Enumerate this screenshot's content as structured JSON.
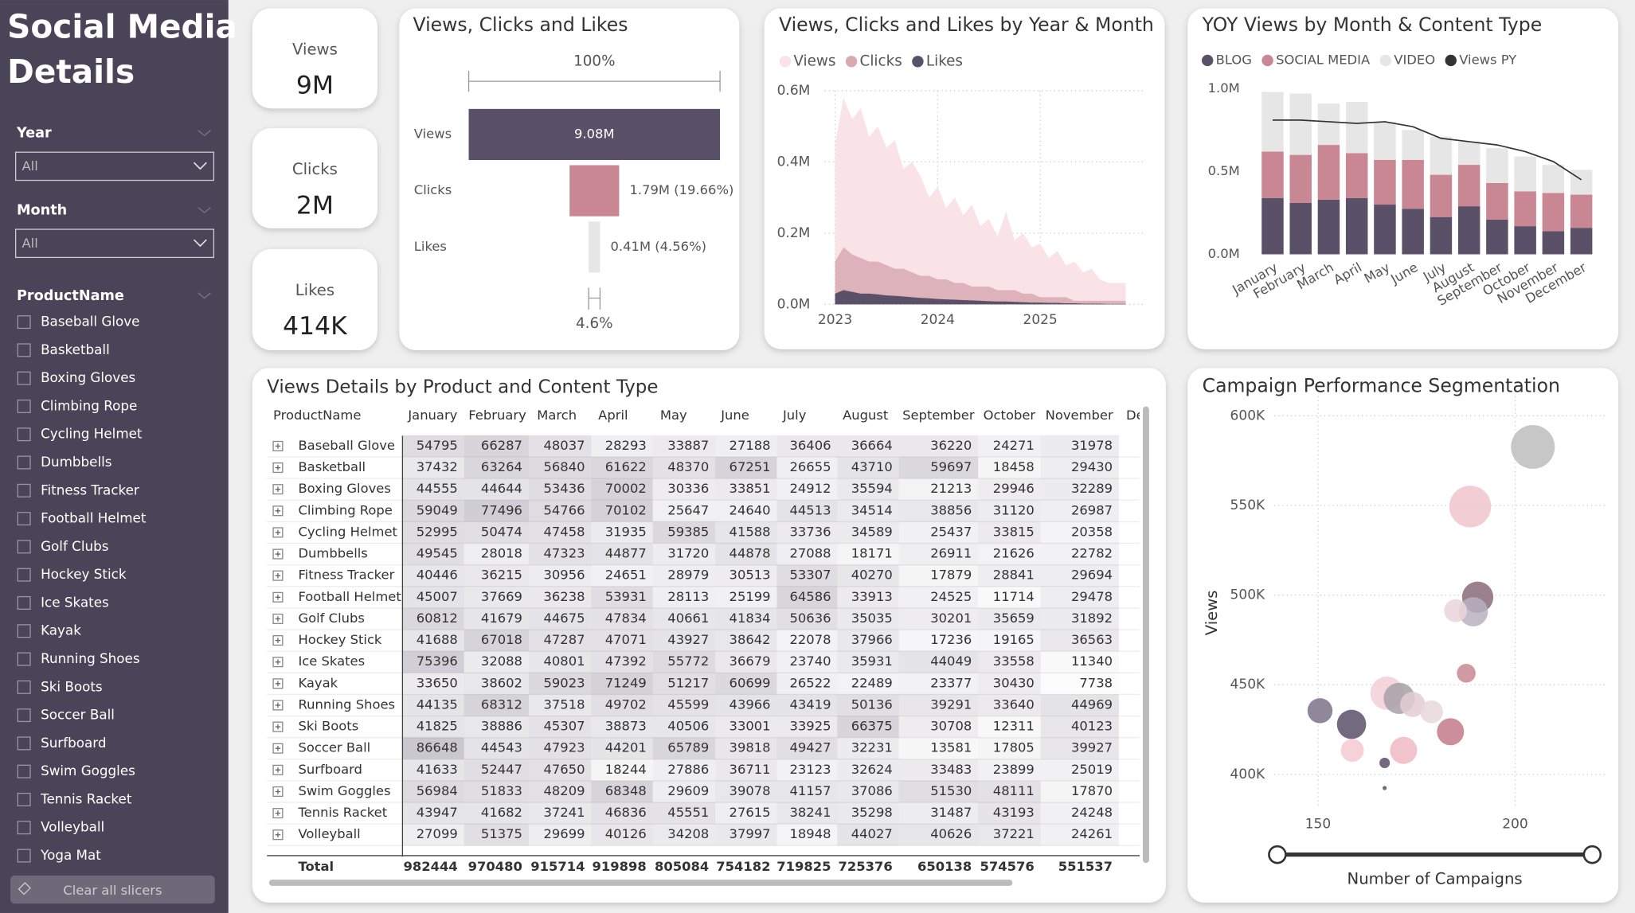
{
  "sidebar": {
    "title_lines": [
      "Social Media",
      "Details"
    ],
    "slicers": [
      {
        "label": "Year",
        "value": "All"
      },
      {
        "label": "Month",
        "value": "All"
      }
    ],
    "list_title": "ProductName",
    "items": [
      "Baseball Glove",
      "Basketball",
      "Boxing Gloves",
      "Climbing Rope",
      "Cycling Helmet",
      "Dumbbells",
      "Fitness Tracker",
      "Football Helmet",
      "Golf Clubs",
      "Hockey Stick",
      "Ice Skates",
      "Kayak",
      "Running Shoes",
      "Ski Boots",
      "Soccer Ball",
      "Surfboard",
      "Swim Goggles",
      "Tennis Racket",
      "Volleyball",
      "Yoga Mat"
    ],
    "clear_button": "Clear all slicers"
  },
  "cards": [
    {
      "label": "Views",
      "value": "9M"
    },
    {
      "label": "Clicks",
      "value": "2M"
    },
    {
      "label": "Likes",
      "value": "414K"
    }
  ],
  "chart_data": [
    {
      "type": "funnel",
      "title": "Views, Clicks and Likes",
      "categories": [
        "Views",
        "Clicks",
        "Likes"
      ],
      "values": [
        9.08,
        1.79,
        0.41
      ],
      "value_labels": [
        "9.08M",
        "1.79M (19.66%)",
        "0.41M (4.56%)"
      ],
      "colors": [
        "#5a5068",
        "#c98793",
        "#e6e6e6"
      ],
      "top_label": "100%",
      "bottom_label": "4.6%"
    },
    {
      "type": "area",
      "title": "Views, Clicks and Likes by Year & Month",
      "legend": "top-left",
      "grid": true,
      "x": [
        2023,
        2023.083,
        2023.167,
        2023.25,
        2023.333,
        2023.417,
        2023.5,
        2023.583,
        2023.667,
        2023.75,
        2023.833,
        2023.917,
        2024,
        2024.083,
        2024.167,
        2024.25,
        2024.333,
        2024.417,
        2024.5,
        2024.583,
        2024.667,
        2024.75,
        2024.833,
        2024.917,
        2025,
        2025.083,
        2025.167,
        2025.25,
        2025.333,
        2025.417,
        2025.5,
        2025.583,
        2025.667,
        2025.75,
        2025.833
      ],
      "series": [
        {
          "name": "Views",
          "color": "#f9e3e6",
          "values": [
            0.45,
            0.58,
            0.52,
            0.55,
            0.47,
            0.5,
            0.44,
            0.46,
            0.38,
            0.4,
            0.36,
            0.3,
            0.33,
            0.27,
            0.3,
            0.25,
            0.28,
            0.22,
            0.24,
            0.19,
            0.26,
            0.18,
            0.2,
            0.16,
            0.17,
            0.13,
            0.15,
            0.11,
            0.12,
            0.09,
            0.1,
            0.07,
            0.06,
            0.06,
            0.06
          ]
        },
        {
          "name": "Clicks",
          "color": "#d9a9b2",
          "values": [
            0.12,
            0.16,
            0.14,
            0.13,
            0.12,
            0.12,
            0.11,
            0.1,
            0.1,
            0.09,
            0.08,
            0.08,
            0.07,
            0.07,
            0.06,
            0.06,
            0.05,
            0.05,
            0.05,
            0.04,
            0.04,
            0.04,
            0.03,
            0.03,
            0.02,
            0.02,
            0.02,
            0.02,
            0.01,
            0.01,
            0.01,
            0.01,
            0.01,
            0.01,
            0.01
          ]
        },
        {
          "name": "Likes",
          "color": "#5a5068",
          "values": [
            0.03,
            0.04,
            0.035,
            0.03,
            0.03,
            0.028,
            0.025,
            0.024,
            0.022,
            0.02,
            0.018,
            0.017,
            0.015,
            0.014,
            0.013,
            0.012,
            0.011,
            0.01,
            0.009,
            0.008,
            0.008,
            0.007,
            0.006,
            0.005,
            0.005,
            0.004,
            0.004,
            0.003,
            0.003,
            0.002,
            0.002,
            0.002,
            0.001,
            0.001,
            0.001
          ]
        }
      ],
      "xlim": [
        2022.9,
        2026
      ],
      "xticks": [
        2023,
        2024,
        2025
      ],
      "ylim": [
        0,
        0.6
      ],
      "yticks": [
        {
          "value": 0,
          "label": "0.0M"
        },
        {
          "value": 0.2,
          "label": "0.2M"
        },
        {
          "value": 0.4,
          "label": "0.4M"
        },
        {
          "value": 0.6,
          "label": "0.6M"
        }
      ]
    },
    {
      "type": "stacked-bar",
      "title": "YOY Views by Month & Content Type",
      "legend": "top-left",
      "categories": [
        "January",
        "February",
        "March",
        "April",
        "May",
        "June",
        "July",
        "August",
        "September",
        "October",
        "November",
        "December"
      ],
      "series": [
        {
          "name": "BLOG",
          "color": "#5a5068",
          "values": [
            0.34,
            0.31,
            0.33,
            0.34,
            0.3,
            0.275,
            0.225,
            0.29,
            0.21,
            0.17,
            0.14,
            0.16
          ]
        },
        {
          "name": "SOCIAL MEDIA",
          "color": "#c98793",
          "values": [
            0.28,
            0.29,
            0.33,
            0.27,
            0.27,
            0.295,
            0.255,
            0.25,
            0.22,
            0.21,
            0.23,
            0.2
          ]
        },
        {
          "name": "VIDEO",
          "color": "#e6e6e6",
          "values": [
            0.36,
            0.37,
            0.25,
            0.31,
            0.23,
            0.18,
            0.23,
            0.14,
            0.21,
            0.21,
            0.17,
            0.15
          ]
        },
        {
          "name": "Views PY",
          "type": "line",
          "color": "#333333",
          "values": [
            0.81,
            0.81,
            0.8,
            0.79,
            0.8,
            0.77,
            0.7,
            0.68,
            0.66,
            0.62,
            0.56,
            0.45
          ]
        }
      ],
      "ylim": [
        0,
        1
      ],
      "yticks": [
        {
          "value": 0,
          "label": "0.0M"
        },
        {
          "value": 0.5,
          "label": "0.5M"
        },
        {
          "value": 1,
          "label": "1.0M"
        }
      ]
    },
    {
      "type": "scatter",
      "title": "Campaign Performance Segmentation",
      "x_label": "Number of Campaigns",
      "y_label": "Views",
      "grid": true,
      "x": [
        204.5,
        188.6,
        190.5,
        189.4,
        184.9,
        187.6,
        150.5,
        158.5,
        167.5,
        170.6,
        174,
        178.8,
        183.6,
        171.7,
        158.7,
        166.9,
        166.9
      ],
      "y": [
        582600,
        549400,
        498800,
        490700,
        491300,
        456400,
        435500,
        427900,
        445300,
        442400,
        439000,
        434900,
        423800,
        413400,
        413400,
        406400,
        392400
      ],
      "sizes": [
        21,
        20,
        15,
        14,
        11,
        9,
        12,
        14,
        16,
        15,
        12,
        11,
        13,
        13,
        11,
        5,
        2
      ],
      "colors": [
        "#bdbdbd",
        "#f0c4cb",
        "#8a6b78",
        "#b8b0c0",
        "#ead5da",
        "#c98793",
        "#7d7288",
        "#5a5068",
        "#f2d0d6",
        "#a8a0a8",
        "#e3cdd4",
        "#e8d8dc",
        "#c37a88",
        "#f0b8c3",
        "#f5c9d0",
        "#5a5068",
        "#5a5068"
      ],
      "xlim": [
        125,
        223
      ],
      "xticks": [
        150,
        200
      ],
      "ylim": [
        381000,
        611000
      ],
      "yticks": [
        {
          "value": 400000,
          "label": "400K"
        },
        {
          "value": 450000,
          "label": "450K"
        },
        {
          "value": 500000,
          "label": "500K"
        },
        {
          "value": 550000,
          "label": "550K"
        },
        {
          "value": 600000,
          "label": "600K"
        }
      ]
    }
  ],
  "table": {
    "title": "Views Details by Product and Content Type",
    "columns": [
      "ProductName",
      "January",
      "February",
      "March",
      "April",
      "May",
      "June",
      "July",
      "August",
      "September",
      "October",
      "November",
      "De"
    ],
    "rows": [
      [
        "Baseball Glove",
        54795,
        66287,
        48037,
        28293,
        33887,
        27188,
        36406,
        36664,
        36220,
        24271,
        31978
      ],
      [
        "Basketball",
        37432,
        63264,
        56840,
        61622,
        48370,
        67251,
        26655,
        43710,
        59697,
        18458,
        29430
      ],
      [
        "Boxing Gloves",
        44555,
        44644,
        53436,
        70002,
        30336,
        33851,
        24912,
        35594,
        21213,
        29946,
        32289
      ],
      [
        "Climbing Rope",
        59049,
        77496,
        54766,
        70102,
        25647,
        24640,
        44513,
        34514,
        38856,
        31120,
        26987
      ],
      [
        "Cycling Helmet",
        52995,
        50474,
        47458,
        31935,
        59385,
        41588,
        33736,
        34589,
        25437,
        33815,
        20358
      ],
      [
        "Dumbbells",
        49545,
        28018,
        47323,
        44877,
        31720,
        44878,
        27088,
        18171,
        26911,
        21626,
        22782
      ],
      [
        "Fitness Tracker",
        40446,
        36215,
        30956,
        24651,
        28979,
        30513,
        53307,
        40270,
        17879,
        28841,
        29694
      ],
      [
        "Football Helmet",
        45007,
        37669,
        36238,
        53931,
        28113,
        25199,
        64586,
        33913,
        24525,
        11714,
        29478
      ],
      [
        "Golf Clubs",
        60812,
        41679,
        44675,
        47834,
        40661,
        41834,
        50636,
        35035,
        30201,
        35659,
        31892
      ],
      [
        "Hockey Stick",
        41688,
        67018,
        47287,
        47071,
        43927,
        38642,
        22078,
        37966,
        17236,
        19165,
        36563
      ],
      [
        "Ice Skates",
        75396,
        32088,
        40801,
        47392,
        55772,
        36679,
        23740,
        35931,
        44049,
        33558,
        11340
      ],
      [
        "Kayak",
        33650,
        38602,
        59023,
        71249,
        51217,
        60699,
        26522,
        22489,
        23377,
        30430,
        7738
      ],
      [
        "Running Shoes",
        44135,
        68312,
        37518,
        49702,
        45599,
        43966,
        43419,
        50136,
        39291,
        33640,
        44969
      ],
      [
        "Ski Boots",
        41825,
        38886,
        45307,
        38873,
        40506,
        33001,
        33925,
        66375,
        30708,
        12311,
        40123
      ],
      [
        "Soccer Ball",
        86648,
        44543,
        47923,
        44201,
        65789,
        39818,
        49427,
        32231,
        13581,
        17805,
        39927
      ],
      [
        "Surfboard",
        41633,
        52447,
        47650,
        18244,
        27886,
        36711,
        23123,
        32624,
        33483,
        23899,
        25019
      ],
      [
        "Swim Goggles",
        56984,
        51833,
        48209,
        68348,
        29609,
        39078,
        41157,
        37086,
        51530,
        48111,
        17870
      ],
      [
        "Tennis Racket",
        43947,
        41682,
        37241,
        46836,
        45551,
        27615,
        38241,
        35298,
        31487,
        43193,
        24248
      ],
      [
        "Volleyball",
        27099,
        51375,
        29699,
        40126,
        34208,
        37997,
        18948,
        44027,
        40626,
        37221,
        24261
      ]
    ],
    "total": [
      "Total",
      982444,
      970480,
      915714,
      919898,
      805084,
      754182,
      719825,
      725376,
      650138,
      574576,
      551537
    ]
  }
}
